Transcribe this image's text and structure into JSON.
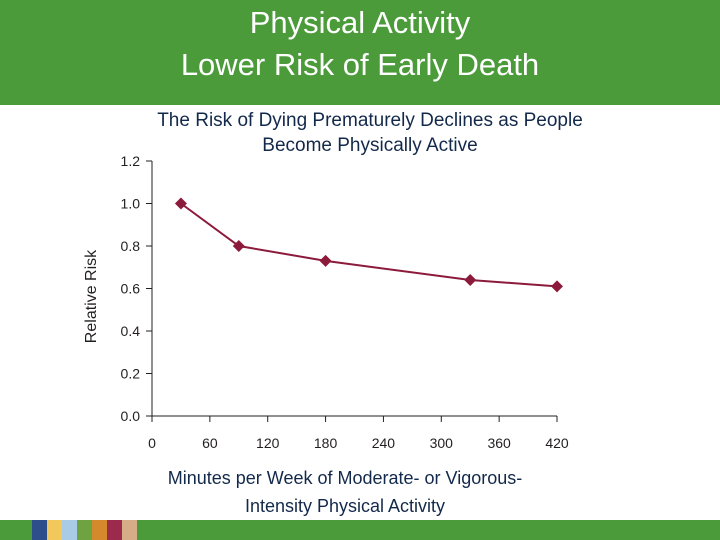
{
  "header": {
    "title_line1": "Physical Activity",
    "title_line2": "Lower Risk of Early Death"
  },
  "chart_data": {
    "type": "line",
    "title_line1": "The Risk of Dying Prematurely Declines as People",
    "title_line2": "Become Physically Active",
    "ylabel": "Relative Risk",
    "xlabel_line1": "Minutes per Week of Moderate- or Vigorous-",
    "xlabel_line2": "Intensity Physical Activity",
    "x_ticks": [
      0,
      60,
      120,
      180,
      240,
      300,
      360,
      420
    ],
    "y_ticks": [
      "0.0",
      "0.2",
      "0.4",
      "0.6",
      "0.8",
      "1.0",
      "1.2"
    ],
    "xlim": [
      0,
      420
    ],
    "ylim": [
      0,
      1.2
    ],
    "grid": false,
    "series": [
      {
        "x": [
          30,
          90,
          180,
          330,
          420
        ],
        "y": [
          1.0,
          0.8,
          0.73,
          0.64,
          0.61
        ]
      }
    ],
    "line_color": "#8b1a3b"
  },
  "colors": {
    "header_bg": "#4b9b3b",
    "title_text": "#ffffff",
    "subtitle_text": "#13294b",
    "footer_blocks": [
      "#2d4e8a",
      "#f2c75c",
      "#a9cbe6",
      "#6fa342",
      "#d48a2c",
      "#9c2a4d",
      "#d7ad88"
    ]
  }
}
